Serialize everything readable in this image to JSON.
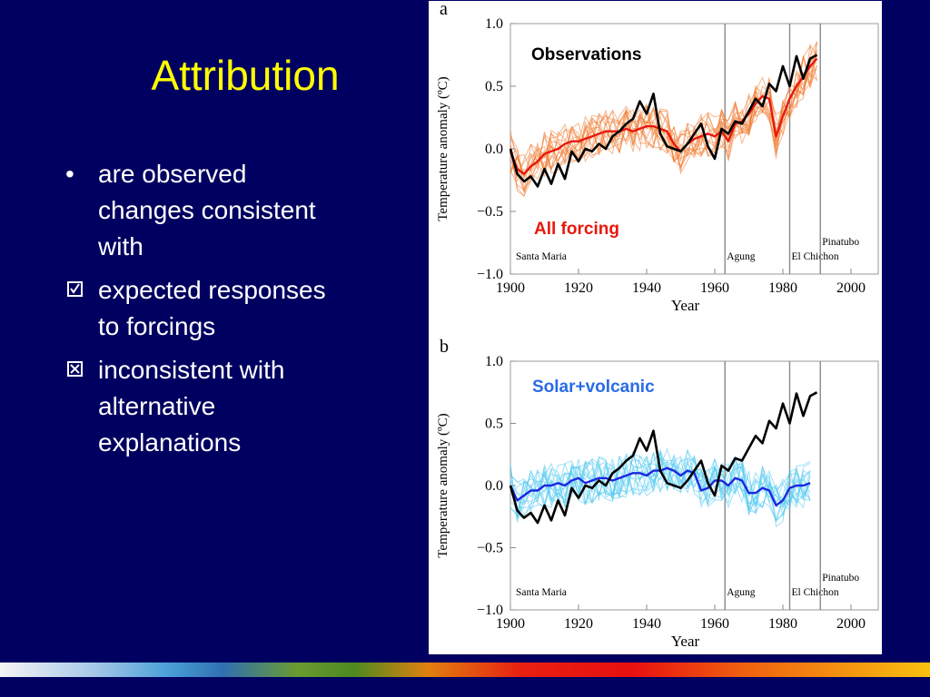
{
  "slide": {
    "title": "Attribution",
    "bullets": [
      {
        "marker": "bullet",
        "text_lines": [
          "are observed",
          "changes consistent",
          "with"
        ]
      },
      {
        "marker": "checked-box",
        "text_lines": [
          "expected responses",
          "to forcings"
        ]
      },
      {
        "marker": "crossed-box",
        "text_lines": [
          "inconsistent with",
          "alternative",
          "explanations"
        ]
      }
    ],
    "footer_colors": [
      "#f4f4f4",
      "#4aa0d8",
      "#4c8a20",
      "#e08010",
      "#e81010",
      "#f8c010"
    ]
  },
  "chart_data": [
    {
      "type": "line",
      "panel_label": "a",
      "xlabel": "Year",
      "ylabel": "Temperature anomaly (ºC)",
      "xlim": [
        1900,
        2008
      ],
      "ylim": [
        -1.0,
        1.0
      ],
      "xticks": [
        1900,
        1920,
        1940,
        1960,
        1980,
        2000
      ],
      "yticks": [
        "1.0",
        "0.5",
        "0.0",
        "−0.5",
        "−1.0"
      ],
      "volcanoes": [
        {
          "name": "Santa Maria",
          "year": 1902
        },
        {
          "name": "Agung",
          "year": 1963
        },
        {
          "name": "El Chichon",
          "year": 1982
        },
        {
          "name": "Pinatubo",
          "year": 1991
        }
      ],
      "annotations": [
        {
          "text": "Observations",
          "color": "#000000"
        },
        {
          "text": "All forcing",
          "color": "#e8180c"
        }
      ],
      "series": [
        {
          "name": "Observations",
          "color": "#000000",
          "x_start": 1900,
          "x_step": 2,
          "values": [
            0.0,
            -0.2,
            -0.26,
            -0.22,
            -0.3,
            -0.16,
            -0.28,
            -0.12,
            -0.24,
            -0.02,
            -0.1,
            0.0,
            -0.02,
            0.04,
            0.0,
            0.1,
            0.14,
            0.2,
            0.24,
            0.38,
            0.28,
            0.44,
            0.12,
            0.02,
            0.0,
            -0.02,
            0.04,
            0.12,
            0.2,
            0.02,
            -0.08,
            0.16,
            0.12,
            0.22,
            0.2,
            0.3,
            0.4,
            0.34,
            0.52,
            0.46,
            0.66,
            0.5,
            0.74,
            0.56,
            0.72,
            0.75
          ]
        },
        {
          "name": "All forcing",
          "color": "#e8180c",
          "x_start": 1900,
          "x_step": 2,
          "values": [
            -0.02,
            -0.16,
            -0.2,
            -0.14,
            -0.1,
            -0.04,
            -0.02,
            0.0,
            0.04,
            0.06,
            0.06,
            0.08,
            0.1,
            0.12,
            0.14,
            0.14,
            0.14,
            0.16,
            0.14,
            0.16,
            0.18,
            0.18,
            0.16,
            0.14,
            0.04,
            -0.02,
            0.04,
            0.08,
            0.1,
            0.12,
            0.1,
            0.14,
            0.06,
            0.2,
            0.22,
            0.28,
            0.36,
            0.42,
            0.4,
            0.1,
            0.26,
            0.4,
            0.5,
            0.58,
            0.66,
            0.72
          ]
        }
      ]
    },
    {
      "type": "line",
      "panel_label": "b",
      "xlabel": "Year",
      "ylabel": "Temperature anomaly (ºC)",
      "xlim": [
        1900,
        2008
      ],
      "ylim": [
        -1.0,
        1.0
      ],
      "xticks": [
        1900,
        1920,
        1940,
        1960,
        1980,
        2000
      ],
      "yticks": [
        "1.0",
        "0.5",
        "0.0",
        "−0.5",
        "−1.0"
      ],
      "volcanoes": [
        {
          "name": "Santa Maria",
          "year": 1902
        },
        {
          "name": "Agung",
          "year": 1963
        },
        {
          "name": "El Chichon",
          "year": 1982
        },
        {
          "name": "Pinatubo",
          "year": 1991
        }
      ],
      "annotations": [
        {
          "text": "Solar+volcanic",
          "color": "#2a6be8"
        }
      ],
      "series": [
        {
          "name": "Observations",
          "color": "#000000",
          "x_start": 1900,
          "x_step": 2,
          "values": [
            0.0,
            -0.2,
            -0.26,
            -0.22,
            -0.3,
            -0.16,
            -0.28,
            -0.12,
            -0.24,
            -0.02,
            -0.1,
            0.0,
            -0.02,
            0.04,
            0.0,
            0.1,
            0.14,
            0.2,
            0.24,
            0.38,
            0.28,
            0.44,
            0.12,
            0.02,
            0.0,
            -0.02,
            0.04,
            0.12,
            0.2,
            0.02,
            -0.08,
            0.16,
            0.12,
            0.22,
            0.2,
            0.3,
            0.4,
            0.34,
            0.52,
            0.46,
            0.66,
            0.5,
            0.74,
            0.56,
            0.72,
            0.75
          ]
        },
        {
          "name": "Solar+volcanic",
          "color": "#1a28e0",
          "x_start": 1900,
          "x_step": 2,
          "values": [
            0.0,
            -0.12,
            -0.08,
            -0.04,
            -0.04,
            0.0,
            0.0,
            0.02,
            0.0,
            0.04,
            0.06,
            0.02,
            0.04,
            0.06,
            0.06,
            0.04,
            0.06,
            0.08,
            0.1,
            0.1,
            0.08,
            0.12,
            0.12,
            0.14,
            0.12,
            0.08,
            0.12,
            0.1,
            -0.04,
            -0.02,
            0.04,
            0.04,
            0.0,
            0.06,
            0.04,
            -0.06,
            -0.06,
            -0.02,
            -0.04,
            -0.16,
            -0.12,
            -0.02,
            0.0,
            0.0,
            0.02
          ]
        }
      ]
    }
  ]
}
